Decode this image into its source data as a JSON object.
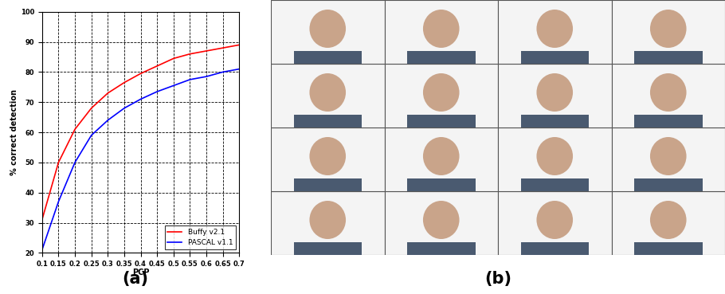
{
  "chart_data": {
    "type": "line",
    "x_label": "PCP",
    "y_label": "% correct detection",
    "x": [
      0.1,
      0.15,
      0.2,
      0.25,
      0.3,
      0.35,
      0.4,
      0.45,
      0.5,
      0.55,
      0.6,
      0.65,
      0.7
    ],
    "series": [
      {
        "name": "Buffy v2.1",
        "color": "#ff0000",
        "values": [
          31,
          50,
          61,
          68,
          73,
          76.5,
          79.5,
          82,
          84.5,
          86,
          87,
          88,
          89
        ]
      },
      {
        "name": "PASCAL v1.1",
        "color": "#0000ff",
        "values": [
          21,
          37,
          50,
          59,
          64,
          68,
          71,
          73.5,
          75.5,
          77.5,
          78.5,
          80,
          81
        ]
      }
    ],
    "xlim": [
      0.1,
      0.7
    ],
    "xticks": [
      0.1,
      0.15,
      0.2,
      0.25,
      0.3,
      0.35,
      0.4,
      0.45,
      0.5,
      0.55,
      0.6,
      0.65,
      0.7
    ],
    "ylim": [
      20,
      100
    ],
    "yticks": [
      20,
      30,
      40,
      50,
      60,
      70,
      80,
      90,
      100
    ],
    "grid": true,
    "legend": "lower right"
  },
  "panel_labels": [
    "(a)",
    "(b)"
  ]
}
